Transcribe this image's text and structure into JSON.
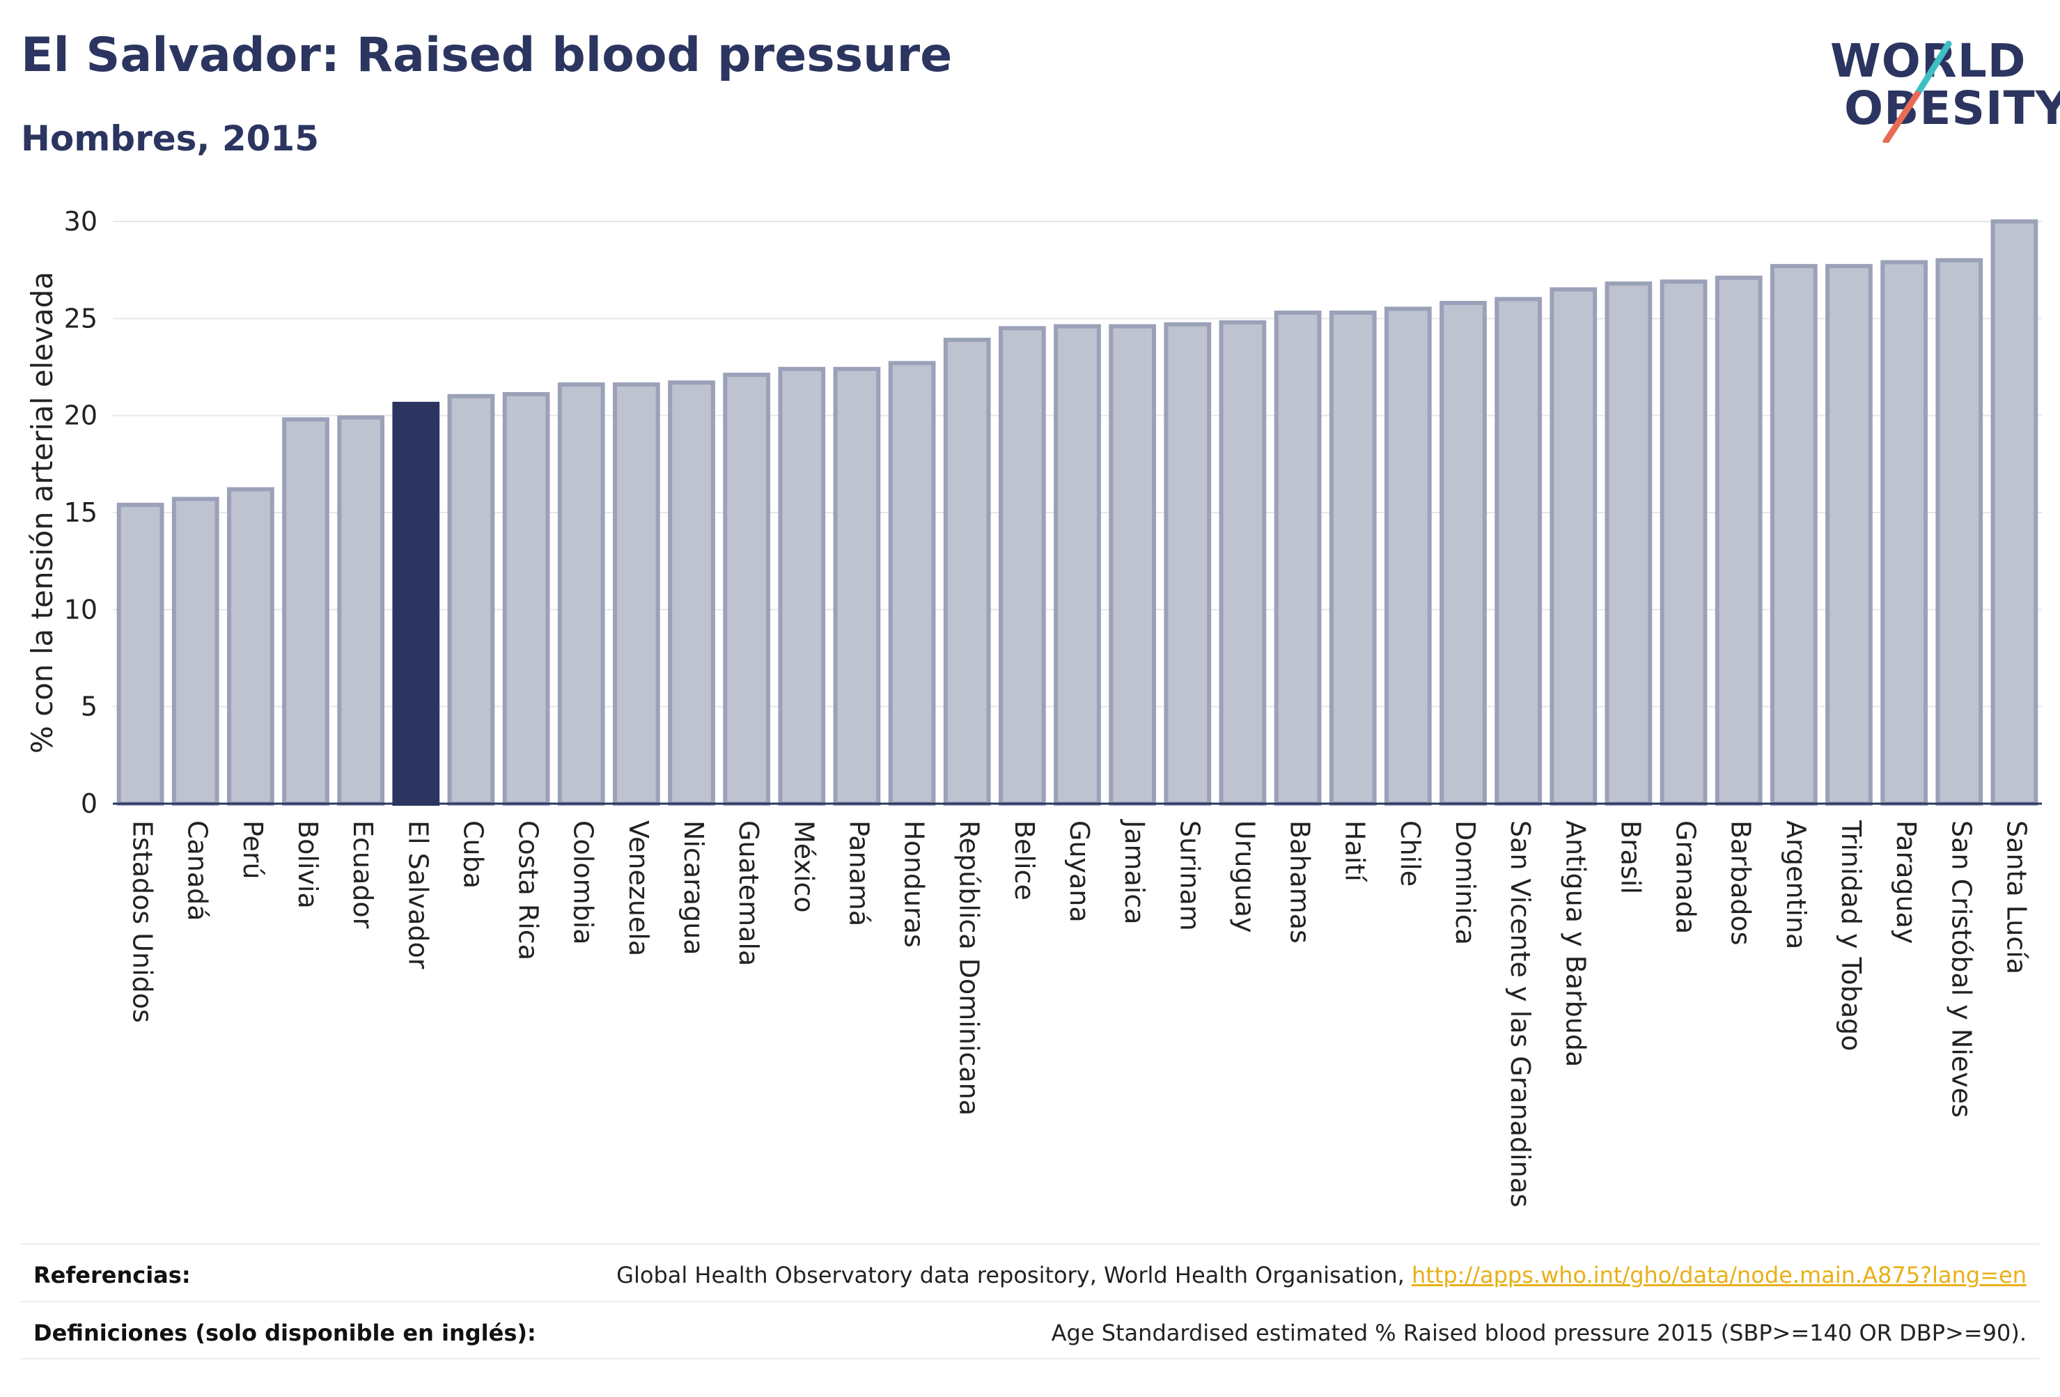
{
  "header": {
    "title": "El Salvador: Raised blood pressure",
    "subtitle": "Hombres, 2015"
  },
  "logo": {
    "line1": "WORLD",
    "line2": "OBESITY",
    "slash_colors": [
      "#3dbfc4",
      "#e96b55"
    ]
  },
  "colors": {
    "bar": "#bfc3d0",
    "bar_edge": "#9aa1b8",
    "highlight": "#2b3560",
    "grid": "#e6e6e6",
    "axis": "#2b3560"
  },
  "chart_data": {
    "type": "bar",
    "ylabel": "% con la tensión arterial elevada",
    "ylim": [
      0,
      30
    ],
    "yticks": [
      0,
      5,
      10,
      15,
      20,
      25,
      30
    ],
    "grid": true,
    "highlight": "El Salvador",
    "categories": [
      "Estados Unidos",
      "Canadá",
      "Perú",
      "Bolivia",
      "Ecuador",
      "El Salvador",
      "Cuba",
      "Costa Rica",
      "Colombia",
      "Venezuela",
      "Nicaragua",
      "Guatemala",
      "México",
      "Panamá",
      "Honduras",
      "República Dominicana",
      "Belice",
      "Guyana",
      "Jamaica",
      "Surinam",
      "Uruguay",
      "Bahamas",
      "Haití",
      "Chile",
      "Dominica",
      "San Vicente y las Granadinas",
      "Antigua y Barbuda",
      "Brasil",
      "Granada",
      "Barbados",
      "Argentina",
      "Trinidad y Tobago",
      "Paraguay",
      "San Cristóbal y Nieves",
      "Santa Lucía"
    ],
    "values": [
      15.4,
      15.7,
      16.2,
      19.8,
      19.9,
      20.6,
      21.0,
      21.1,
      21.6,
      21.6,
      21.7,
      22.1,
      22.4,
      22.4,
      22.7,
      23.9,
      24.5,
      24.6,
      24.6,
      24.7,
      24.8,
      25.3,
      25.3,
      25.5,
      25.8,
      26.0,
      26.5,
      26.8,
      26.9,
      27.1,
      27.7,
      27.7,
      27.9,
      28.0,
      30.0
    ]
  },
  "footer": {
    "ref_label": "Referencias:",
    "ref_text": "Global Health Observatory data repository, World Health Organisation, ",
    "ref_link": "http://apps.who.int/gho/data/node.main.A875?lang=en",
    "def_label": "Definiciones (solo disponible en inglés):",
    "def_text": "Age Standardised estimated % Raised blood pressure 2015 (SBP>=140 OR DBP>=90)."
  }
}
